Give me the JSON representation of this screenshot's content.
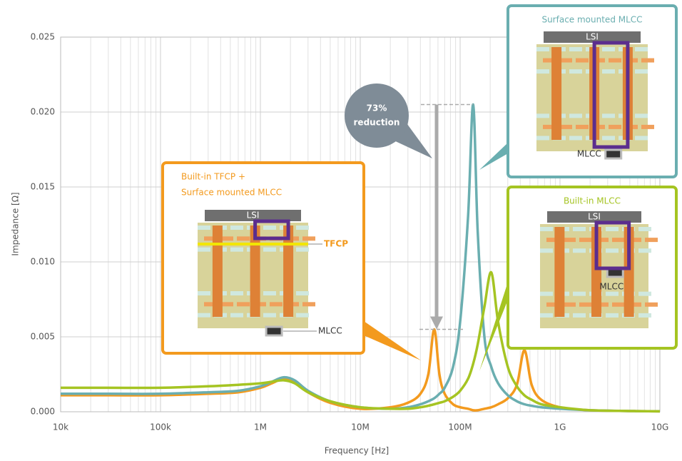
{
  "chart_data": {
    "type": "line",
    "x_label": "Frequency [Hz]",
    "y_label": "Impedance [Ω]",
    "log_x": true,
    "grid": true,
    "minor_grid": true,
    "xlim": [
      10000,
      10000000000
    ],
    "xticks": [
      {
        "value": 10000,
        "label": "10k"
      },
      {
        "value": 100000,
        "label": "100k"
      },
      {
        "value": 1000000,
        "label": "1M"
      },
      {
        "value": 10000000,
        "label": "10M"
      },
      {
        "value": 100000000,
        "label": "100M"
      },
      {
        "value": 1000000000,
        "label": "1G"
      },
      {
        "value": 10000000000,
        "label": "10G"
      }
    ],
    "ylim": [
      0,
      0.025
    ],
    "yticks": [
      {
        "value": 0,
        "label": "0.000"
      },
      0.005,
      {
        "value": 0.01,
        "label": "0.010"
      },
      0.015,
      {
        "value": 0.02,
        "label": "0.020"
      },
      0.025
    ],
    "x": [
      10000,
      30000,
      100000,
      300000,
      600000,
      1000000,
      1300000,
      1700000,
      2200000,
      3000000,
      5000000,
      10000000,
      20000000,
      30000000,
      40000000,
      48000000,
      55000000,
      62000000,
      70000000,
      85000000,
      100000000,
      120000000,
      135000000,
      150000000,
      175000000,
      205000000,
      240000000,
      300000000,
      370000000,
      440000000,
      520000000,
      650000000,
      1000000000,
      2000000000,
      5000000000,
      10000000000
    ],
    "series": [
      {
        "color": "#f39a1e",
        "values": [
          0.0011,
          0.0011,
          0.0011,
          0.0012,
          0.0013,
          0.0016,
          0.0019,
          0.0022,
          0.002,
          0.0013,
          0.0006,
          0.0002,
          0.0003,
          0.0006,
          0.0012,
          0.0025,
          0.0055,
          0.0025,
          0.0012,
          0.0005,
          0.0003,
          0.0002,
          0.0001,
          0.0001,
          0.0002,
          0.0003,
          0.0005,
          0.0009,
          0.0018,
          0.0041,
          0.0018,
          0.0008,
          0.0003,
          0.0001,
          5e-05,
          3e-05
        ]
      },
      {
        "color": "#6aaeb0",
        "values": [
          0.0012,
          0.0012,
          0.0012,
          0.0013,
          0.0014,
          0.0017,
          0.002,
          0.0023,
          0.0021,
          0.0014,
          0.0007,
          0.0003,
          0.0002,
          0.0003,
          0.0005,
          0.0007,
          0.0009,
          0.0012,
          0.0016,
          0.003,
          0.006,
          0.013,
          0.0205,
          0.012,
          0.005,
          0.003,
          0.0019,
          0.0011,
          0.0007,
          0.0005,
          0.0004,
          0.0003,
          0.0002,
          0.0001,
          5e-05,
          3e-05
        ]
      },
      {
        "color": "#a5c422",
        "values": [
          0.0016,
          0.0016,
          0.0016,
          0.0017,
          0.0018,
          0.0019,
          0.002,
          0.0021,
          0.0019,
          0.0013,
          0.0007,
          0.0003,
          0.0002,
          0.0002,
          0.0003,
          0.0004,
          0.0005,
          0.0006,
          0.0007,
          0.001,
          0.0014,
          0.0022,
          0.0032,
          0.0045,
          0.007,
          0.0093,
          0.006,
          0.003,
          0.0017,
          0.0011,
          0.0008,
          0.0005,
          0.0003,
          0.0001,
          5e-05,
          3e-05
        ]
      }
    ],
    "reduction": {
      "percent": "73%",
      "text": "reduction"
    },
    "insets": [
      {
        "title": [
          "Surface mounted MLCC"
        ],
        "color": "#6aaeb0",
        "chip": "LSI",
        "capacitor": "MLCC"
      },
      {
        "title": [
          "Built-in MLCC"
        ],
        "color": "#a5c422",
        "chip": "LSI",
        "capacitor": "MLCC"
      },
      {
        "title": [
          "Built-in TFCP +",
          "Surface mounted MLCC"
        ],
        "color": "#f39a1e",
        "chip": "LSI",
        "capacitor": "MLCC",
        "film": "TFCP"
      }
    ]
  }
}
